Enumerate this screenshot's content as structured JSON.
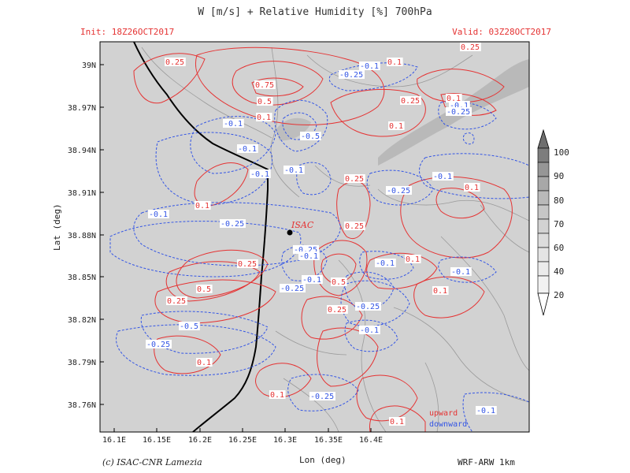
{
  "title": "W [m/s] + Relative Humidity [%] 700hPa",
  "init": "Init: 18Z26OCT2017",
  "valid": "Valid: 03Z28OCT2017",
  "xlabel": "Lon (deg)",
  "ylabel": "Lat (deg)",
  "copyright": "(c) ISAC-CNR Lamezia",
  "model": "WRF-ARW 1km",
  "station_label": "ISAC",
  "legend": {
    "upward": "upward",
    "downward": "downward"
  },
  "colors": {
    "upward": "#e53333",
    "downward": "#3355e5",
    "background": "#d2d2d2",
    "coast": "#000000"
  },
  "lon_ticks": [
    "16.1E",
    "16.15E",
    "16.2E",
    "16.25E",
    "16.3E",
    "16.35E",
    "16.4E"
  ],
  "lat_ticks": [
    "39N",
    "38.97N",
    "38.94N",
    "38.91N",
    "38.88N",
    "38.85N",
    "38.82N",
    "38.79N",
    "38.76N"
  ],
  "colorbar_levels": [
    "100",
    "90",
    "80",
    "70",
    "60",
    "40",
    "20"
  ],
  "contour_labels": {
    "up": [
      "0.25",
      "0.75",
      "0.5",
      "0.1",
      "0.25",
      "0.1",
      "0.25",
      "0.1",
      "0.1",
      "0.1",
      "0.25",
      "0.25",
      "0.25",
      "0.5",
      "0.25",
      "0.1",
      "0.5",
      "0.1",
      "0.25",
      "0.1",
      "0.1",
      "0.1",
      "0.1"
    ],
    "down": [
      "-0.1",
      "-0.25",
      "-0.1",
      "-0.25",
      "-0.1",
      "-0.5",
      "-0.1",
      "-0.1",
      "-0.1",
      "-0.25",
      "-0.1",
      "-0.25",
      "-0.25",
      "-0.1",
      "-0.1",
      "-0.25",
      "-0.1",
      "-0.5",
      "-0.25",
      "-0.25",
      "-0.1",
      "-0.25",
      "-0.1",
      "-0.1",
      "-0.1"
    ]
  }
}
